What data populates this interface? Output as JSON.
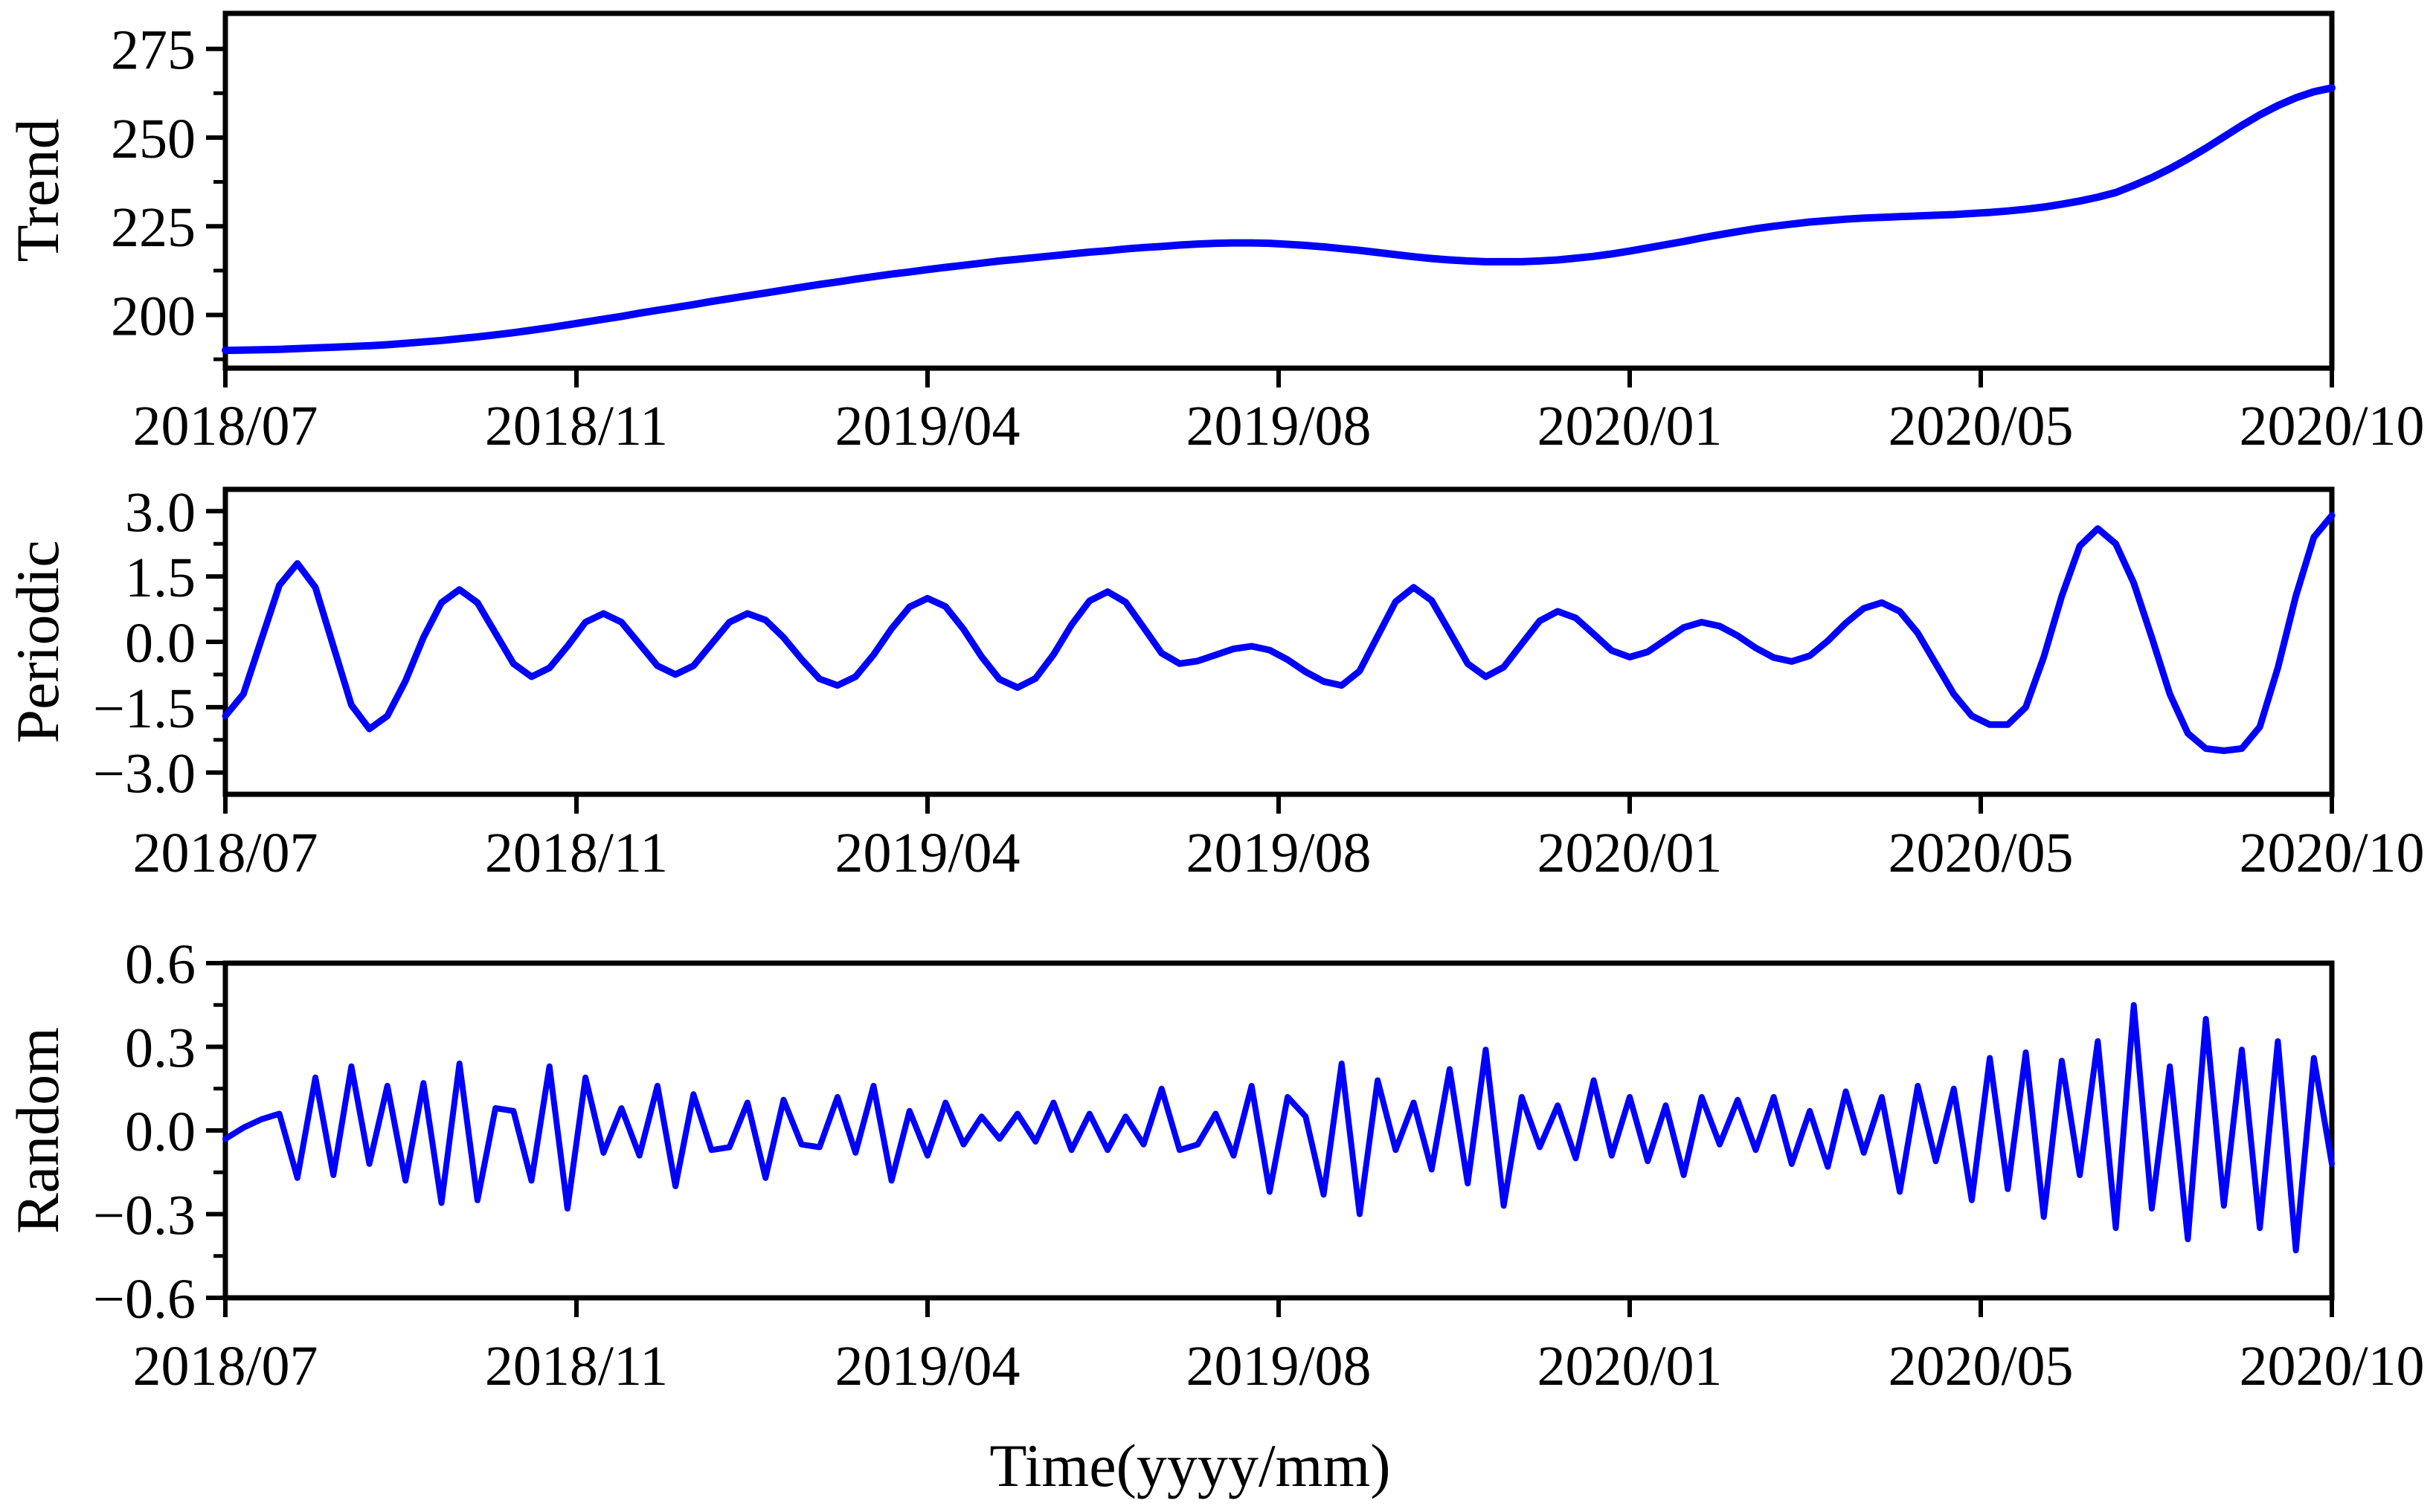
{
  "figure": {
    "background": "#ffffff",
    "line_color": "#0000FF",
    "axis_color": "#000000"
  },
  "labels": {
    "xlabel": "Time(yyyy/mm)"
  },
  "x_ticklabels": [
    "2018/07",
    "2018/11",
    "2019/04",
    "2019/08",
    "2020/01",
    "2020/05",
    "2020/10"
  ],
  "panels": [
    {
      "ylabel": "Trend",
      "ytick_labels": [
        "200",
        "225",
        "250",
        "275"
      ],
      "ytick_values": [
        200,
        225,
        250,
        275
      ],
      "yminor_values": [
        187.5,
        212.5,
        237.5,
        262.5
      ]
    },
    {
      "ylabel": "Periodic",
      "ytick_labels": [
        "−3.0",
        "−1.5",
        "0.0",
        "1.5",
        "3.0"
      ],
      "ytick_values": [
        -3.0,
        -1.5,
        0.0,
        1.5,
        3.0
      ],
      "yminor_values": [
        -2.25,
        -0.75,
        0.75,
        2.25
      ]
    },
    {
      "ylabel": "Random",
      "ytick_labels": [
        "−0.6",
        "−0.3",
        "0.0",
        "0.3",
        "0.6"
      ],
      "ytick_values": [
        -0.6,
        -0.3,
        0.0,
        0.3,
        0.6
      ],
      "yminor_values": [
        -0.45,
        -0.15,
        0.15,
        0.45
      ]
    }
  ],
  "chart_data": [
    {
      "type": "line",
      "title": "",
      "ylabel": "Trend",
      "xlabel": "Time(yyyy/mm)",
      "x_ticklabels": [
        "2018/07",
        "2018/11",
        "2019/04",
        "2019/08",
        "2020/01",
        "2020/05",
        "2020/10"
      ],
      "x_description": "weekly samples, 2018/07 to 2020/10",
      "ylim": [
        185,
        285
      ],
      "yticks": [
        200,
        225,
        250,
        275
      ],
      "grid": false,
      "legend_position": "none",
      "values": [
        190.0,
        190.1,
        190.2,
        190.3,
        190.5,
        190.7,
        190.9,
        191.1,
        191.3,
        191.6,
        192.0,
        192.4,
        192.8,
        193.3,
        193.8,
        194.4,
        195.0,
        195.7,
        196.4,
        197.2,
        198.0,
        198.8,
        199.6,
        200.5,
        201.3,
        202.1,
        202.9,
        203.8,
        204.6,
        205.4,
        206.2,
        207.0,
        207.8,
        208.6,
        209.3,
        210.1,
        210.8,
        211.5,
        212.1,
        212.8,
        213.4,
        214.0,
        214.6,
        215.2,
        215.7,
        216.2,
        216.7,
        217.2,
        217.7,
        218.1,
        218.6,
        219.0,
        219.3,
        219.7,
        220.0,
        220.2,
        220.3,
        220.3,
        220.2,
        219.9,
        219.6,
        219.2,
        218.7,
        218.2,
        217.6,
        217.0,
        216.4,
        215.9,
        215.5,
        215.2,
        215.0,
        215.0,
        215.0,
        215.2,
        215.5,
        216.0,
        216.5,
        217.2,
        218.0,
        218.9,
        219.8,
        220.7,
        221.7,
        222.6,
        223.5,
        224.3,
        225.0,
        225.6,
        226.2,
        226.6,
        227.0,
        227.3,
        227.5,
        227.7,
        227.9,
        228.1,
        228.3,
        228.6,
        228.9,
        229.3,
        229.8,
        230.4,
        231.2,
        232.1,
        233.2,
        234.5,
        236.5,
        238.7,
        241.2,
        244.0,
        247.0,
        250.2,
        253.4,
        256.4,
        259.0,
        261.2,
        262.9,
        264.0
      ]
    },
    {
      "type": "line",
      "title": "",
      "ylabel": "Periodic",
      "xlabel": "Time(yyyy/mm)",
      "x_ticklabels": [
        "2018/07",
        "2018/11",
        "2019/04",
        "2019/08",
        "2020/01",
        "2020/05",
        "2020/10"
      ],
      "x_description": "weekly samples, 2018/07 to 2020/10",
      "ylim": [
        -3.5,
        3.5
      ],
      "yticks": [
        -3.0,
        -1.5,
        0.0,
        1.5,
        3.0
      ],
      "grid": false,
      "legend_position": "none",
      "values": [
        -1.7,
        -1.2,
        0.05,
        1.3,
        1.8,
        1.25,
        -0.1,
        -1.45,
        -2.0,
        -1.7,
        -0.9,
        0.1,
        0.9,
        1.2,
        0.9,
        0.2,
        -0.5,
        -0.8,
        -0.6,
        -0.1,
        0.45,
        0.65,
        0.45,
        -0.05,
        -0.55,
        -0.75,
        -0.55,
        -0.05,
        0.45,
        0.65,
        0.5,
        0.1,
        -0.4,
        -0.85,
        -1.0,
        -0.8,
        -0.3,
        0.3,
        0.8,
        1.0,
        0.81,
        0.29,
        -0.34,
        -0.86,
        -1.05,
        -0.84,
        -0.29,
        0.39,
        0.94,
        1.15,
        0.91,
        0.33,
        -0.26,
        -0.5,
        -0.44,
        -0.3,
        -0.16,
        -0.1,
        -0.19,
        -0.41,
        -0.69,
        -0.91,
        -1.0,
        -0.67,
        0.13,
        0.92,
        1.25,
        0.95,
        0.23,
        -0.5,
        -0.8,
        -0.58,
        -0.05,
        0.48,
        0.7,
        0.55,
        0.18,
        -0.2,
        -0.35,
        -0.23,
        0.05,
        0.33,
        0.45,
        0.36,
        0.14,
        -0.14,
        -0.36,
        -0.45,
        -0.32,
        0.02,
        0.43,
        0.77,
        0.9,
        0.7,
        0.2,
        -0.5,
        -1.2,
        -1.7,
        -1.9,
        -1.9,
        -1.5,
        -0.35,
        1.05,
        2.2,
        2.6,
        2.25,
        1.35,
        0.1,
        -1.2,
        -2.1,
        -2.45,
        -2.5,
        -2.45,
        -1.95,
        -0.6,
        1.05,
        2.4,
        2.9
      ]
    },
    {
      "type": "line",
      "title": "",
      "ylabel": "Random",
      "xlabel": "Time(yyyy/mm)",
      "x_ticklabels": [
        "2018/07",
        "2018/11",
        "2019/04",
        "2019/08",
        "2020/01",
        "2020/05",
        "2020/10"
      ],
      "x_description": "weekly samples, 2018/07 to 2020/10",
      "ylim": [
        -0.6,
        0.6
      ],
      "yticks": [
        -0.6,
        -0.3,
        0.0,
        0.3,
        0.6
      ],
      "grid": false,
      "legend_position": "none",
      "values": [
        -0.03,
        0.01,
        0.04,
        0.06,
        -0.17,
        0.19,
        -0.16,
        0.23,
        -0.12,
        0.16,
        -0.18,
        0.17,
        -0.26,
        0.24,
        -0.25,
        0.08,
        0.07,
        -0.18,
        0.23,
        -0.28,
        0.19,
        -0.08,
        0.08,
        -0.09,
        0.16,
        -0.2,
        0.13,
        -0.07,
        -0.06,
        0.1,
        -0.17,
        0.11,
        -0.05,
        -0.06,
        0.12,
        -0.08,
        0.16,
        -0.18,
        0.07,
        -0.09,
        0.1,
        -0.05,
        0.05,
        -0.03,
        0.06,
        -0.04,
        0.1,
        -0.07,
        0.06,
        -0.07,
        0.05,
        -0.05,
        0.15,
        -0.07,
        -0.05,
        0.06,
        -0.09,
        0.16,
        -0.22,
        0.12,
        0.05,
        -0.23,
        0.24,
        -0.3,
        0.18,
        -0.07,
        0.1,
        -0.14,
        0.22,
        -0.19,
        0.29,
        -0.27,
        0.12,
        -0.06,
        0.09,
        -0.1,
        0.18,
        -0.09,
        0.12,
        -0.11,
        0.09,
        -0.16,
        0.12,
        -0.05,
        0.11,
        -0.07,
        0.12,
        -0.12,
        0.07,
        -0.13,
        0.14,
        -0.08,
        0.12,
        -0.22,
        0.16,
        -0.11,
        0.15,
        -0.25,
        0.26,
        -0.21,
        0.28,
        -0.31,
        0.25,
        -0.16,
        0.32,
        -0.35,
        0.45,
        -0.28,
        0.23,
        -0.39,
        0.4,
        -0.27,
        0.29,
        -0.35,
        0.32,
        -0.43,
        0.26,
        -0.12
      ]
    }
  ]
}
